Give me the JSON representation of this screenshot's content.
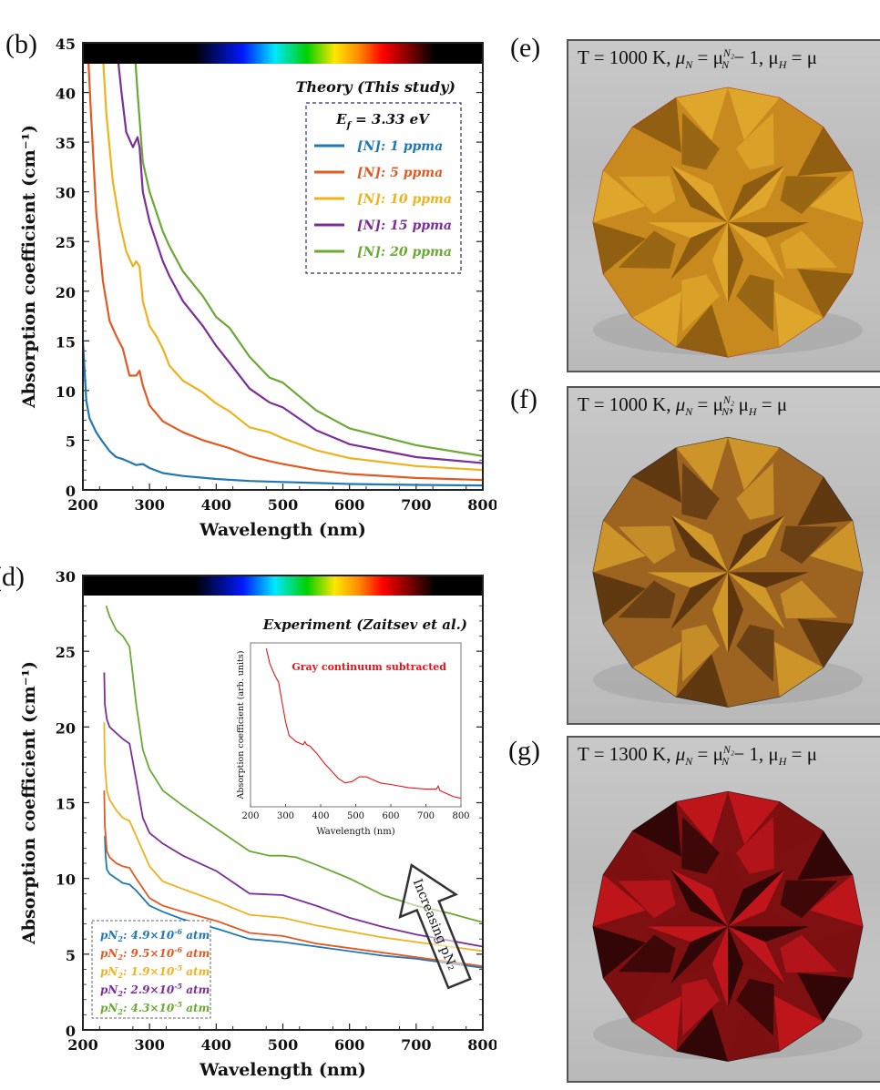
{
  "figure": {
    "panel_labels": [
      "(b)",
      "(d)",
      "(e)",
      "(f)",
      "(g)"
    ]
  },
  "chart_data": [
    {
      "id": "b",
      "type": "line",
      "title": "Theory (This study)",
      "legend_title": "E_f = 3.33 eV",
      "legend_title_main": "E",
      "legend_title_sub": "f",
      "legend_title_rest": " = 3.33 eV",
      "xlabel": "Wavelength (nm)",
      "ylabel": "Absorption coefficient (cm⁻¹)",
      "xlim": [
        200,
        800
      ],
      "ylim": [
        0,
        45
      ],
      "xticks": [
        200,
        300,
        400,
        500,
        600,
        700,
        800
      ],
      "yticks": [
        0,
        5,
        10,
        15,
        20,
        25,
        30,
        35,
        40,
        45
      ],
      "legend_position": "top-right",
      "colorbar": "visible spectrum strip across top (black–violet–blue–cyan–green–yellow–orange–red–black)",
      "series": [
        {
          "name": "[N]:  1 ppma",
          "color": "#1f77b4",
          "x": [
            200,
            205,
            210,
            220,
            230,
            240,
            250,
            260,
            270,
            280,
            290,
            300,
            320,
            350,
            400,
            450,
            500,
            550,
            600,
            700,
            800
          ],
          "y": [
            15,
            9,
            7.2,
            5.8,
            4.8,
            3.9,
            3.3,
            3.1,
            2.8,
            2.5,
            2.6,
            2.2,
            1.7,
            1.4,
            1.1,
            0.9,
            0.8,
            0.7,
            0.6,
            0.5,
            0.45
          ]
        },
        {
          "name": "[N]:  5 ppma",
          "color": "#e05a22",
          "x": [
            207,
            212,
            220,
            230,
            240,
            250,
            260,
            265,
            270,
            280,
            285,
            290,
            300,
            320,
            350,
            380,
            400,
            420,
            450,
            480,
            500,
            550,
            600,
            700,
            800
          ],
          "y": [
            45,
            38,
            28,
            21,
            17,
            15.5,
            14.2,
            12.8,
            11.5,
            11.5,
            12,
            10.5,
            8.5,
            6.9,
            5.8,
            5.0,
            4.6,
            4.2,
            3.4,
            2.9,
            2.6,
            2.0,
            1.6,
            1.2,
            1.0
          ]
        },
        {
          "name": "[N]: 10 ppma",
          "color": "#f0b21c",
          "x": [
            229,
            235,
            245,
            255,
            265,
            275,
            280,
            285,
            290,
            300,
            310,
            320,
            330,
            350,
            380,
            400,
            420,
            450,
            480,
            500,
            550,
            600,
            700,
            800
          ],
          "y": [
            45,
            38,
            31,
            27,
            24,
            22.5,
            23,
            22.5,
            19,
            16.5,
            15.5,
            14.2,
            12.5,
            11.0,
            9.8,
            8.7,
            7.9,
            6.3,
            5.8,
            5.2,
            4.0,
            3.2,
            2.4,
            2.0
          ]
        },
        {
          "name": "[N]: 15 ppma",
          "color": "#7b2d9c",
          "x": [
            250,
            258,
            265,
            275,
            282,
            285,
            290,
            300,
            310,
            320,
            330,
            350,
            380,
            400,
            420,
            450,
            480,
            500,
            550,
            600,
            700,
            800
          ],
          "y": [
            45,
            40,
            36,
            34.5,
            35.5,
            34.5,
            30,
            27,
            25,
            23,
            21.5,
            19,
            16.5,
            14.5,
            12.8,
            10.2,
            8.8,
            8.3,
            6.0,
            4.6,
            3.3,
            2.7
          ]
        },
        {
          "name": "[N]: 20 ppma",
          "color": "#6aa933",
          "x": [
            277,
            282,
            290,
            300,
            310,
            320,
            330,
            350,
            380,
            400,
            420,
            450,
            480,
            500,
            550,
            600,
            700,
            800
          ],
          "y": [
            45,
            40,
            33,
            30,
            28,
            26,
            24.5,
            22,
            19.5,
            17.4,
            16.3,
            13.4,
            11.3,
            10.8,
            8.0,
            6.2,
            4.5,
            3.4
          ]
        }
      ]
    },
    {
      "id": "d",
      "type": "line",
      "title": "Experiment (Zaitsev et al.)",
      "xlabel": "Wavelength (nm)",
      "ylabel": "Absorption coefficient (cm⁻¹)",
      "xlim": [
        200,
        800
      ],
      "ylim": [
        0,
        30
      ],
      "xticks": [
        200,
        300,
        400,
        500,
        600,
        700,
        800
      ],
      "yticks": [
        0,
        5,
        10,
        15,
        20,
        25,
        30
      ],
      "legend_position": "bottom-left",
      "annotation": "Increasing pN₂",
      "colorbar": "visible spectrum strip across top",
      "series": [
        {
          "name": "pN₂:  4.9×10⁻⁶ atm",
          "label_prefix": "pN",
          "label_sub": "2",
          "label_value": ":  4.9×10",
          "label_exp": "-6",
          "label_unit": " atm",
          "color": "#1f77b4",
          "x": [
            233,
            234,
            236,
            240,
            250,
            260,
            270,
            280,
            300,
            320,
            350,
            400,
            450,
            500,
            550,
            600,
            650,
            700,
            750,
            800
          ],
          "y": [
            12.8,
            11.5,
            10.6,
            10.3,
            10.0,
            9.7,
            9.6,
            9.2,
            8.2,
            7.8,
            7.3,
            6.7,
            6.0,
            5.8,
            5.5,
            5.2,
            4.9,
            4.7,
            4.4,
            4.1
          ]
        },
        {
          "name": "pN₂:  9.5×10⁻⁶ atm",
          "label_prefix": "pN",
          "label_sub": "2",
          "label_value": ":  9.5×10",
          "label_exp": "-6",
          "label_unit": " atm",
          "color": "#e05a22",
          "x": [
            232,
            233,
            236,
            240,
            250,
            260,
            270,
            280,
            300,
            320,
            350,
            400,
            450,
            500,
            550,
            600,
            650,
            700,
            750,
            800
          ],
          "y": [
            15.8,
            13.5,
            11.8,
            11.4,
            11.0,
            10.8,
            10.7,
            10.0,
            8.7,
            8.2,
            7.8,
            7.2,
            6.4,
            6.2,
            5.7,
            5.4,
            5.1,
            4.8,
            4.5,
            4.2
          ]
        },
        {
          "name": "pN₂:  1.9×10⁻⁵ atm",
          "label_prefix": "pN",
          "label_sub": "2",
          "label_value": ":  1.9×10",
          "label_exp": "-5",
          "label_unit": " atm",
          "color": "#f0b21c",
          "x": [
            232,
            233,
            236,
            240,
            250,
            260,
            270,
            280,
            300,
            320,
            350,
            400,
            450,
            500,
            550,
            600,
            650,
            700,
            750,
            800
          ],
          "y": [
            20.3,
            17.5,
            15.8,
            15.2,
            14.5,
            14.0,
            13.8,
            12.8,
            10.8,
            9.8,
            9.3,
            8.5,
            7.6,
            7.4,
            6.9,
            6.5,
            6.1,
            5.8,
            5.5,
            5.2
          ]
        },
        {
          "name": "pN₂:  2.9×10⁻⁵ atm",
          "label_prefix": "pN",
          "label_sub": "2",
          "label_value": ":  2.9×10",
          "label_exp": "-5",
          "label_unit": " atm",
          "color": "#7b2d9c",
          "x": [
            232,
            233,
            236,
            240,
            250,
            260,
            270,
            280,
            290,
            300,
            320,
            350,
            400,
            450,
            500,
            550,
            600,
            650,
            700,
            750,
            800
          ],
          "y": [
            23.6,
            21.5,
            20.5,
            20.0,
            19.6,
            19.2,
            18.9,
            16.5,
            14.0,
            13.0,
            12.3,
            11.5,
            10.5,
            9.0,
            8.9,
            8.2,
            7.4,
            6.8,
            6.3,
            5.9,
            5.5
          ]
        },
        {
          "name": "pN₂:  4.3×10⁻⁵ atm",
          "label_prefix": "pN",
          "label_sub": "2",
          "label_value": ":  4.3×10",
          "label_exp": "-5",
          "label_unit": " atm",
          "color": "#6aa933",
          "x": [
            235,
            240,
            250,
            260,
            270,
            280,
            290,
            300,
            320,
            350,
            400,
            450,
            480,
            500,
            520,
            550,
            600,
            650,
            700,
            750,
            800
          ],
          "y": [
            28,
            27.3,
            26.4,
            26.0,
            25.3,
            21.5,
            18.5,
            17.2,
            15.8,
            14.8,
            13.3,
            11.8,
            11.5,
            11.5,
            11.4,
            10.9,
            10.0,
            8.9,
            8.2,
            7.7,
            7.1
          ]
        }
      ]
    },
    {
      "id": "d-inset",
      "type": "line",
      "title": "",
      "annotation": "Gray continuum subtracted",
      "xlabel": "Wavelength (nm)",
      "ylabel": "Absorption coefficient (arb. units)",
      "xlim": [
        200,
        800
      ],
      "ylim": [
        0,
        1
      ],
      "xticks": [
        200,
        300,
        400,
        500,
        600,
        700,
        800
      ],
      "yticks": [],
      "series": [
        {
          "name": "Gray continuum subtracted",
          "color": "#e8141c",
          "x": [
            245,
            255,
            270,
            280,
            290,
            300,
            310,
            330,
            350,
            355,
            360,
            370,
            390,
            410,
            430,
            450,
            470,
            490,
            510,
            530,
            550,
            570,
            600,
            650,
            700,
            730,
            735,
            740,
            760,
            780,
            800
          ],
          "y": [
            1.0,
            0.9,
            0.82,
            0.78,
            0.65,
            0.52,
            0.43,
            0.39,
            0.37,
            0.39,
            0.37,
            0.36,
            0.31,
            0.25,
            0.2,
            0.15,
            0.12,
            0.13,
            0.16,
            0.16,
            0.14,
            0.12,
            0.11,
            0.09,
            0.08,
            0.08,
            0.1,
            0.07,
            0.05,
            0.03,
            0.02
          ]
        }
      ]
    }
  ],
  "gems": [
    {
      "id": "e",
      "temperature": "T = 1000 K,",
      "mu_n": "μ",
      "mu_n_sub": "N",
      "eq": " = μ",
      "mu_sup": "N₂",
      "mu_sub2": "N",
      "tail": " − 1,  μ",
      "mu_h_sub": "H",
      "tail2": " = μ",
      "color_light": "#e0a82c",
      "color_mid": "#c88a1e",
      "color_dark": "#8a5a10",
      "edge": "#b03010"
    },
    {
      "id": "f",
      "temperature": "T = 1000 K,",
      "mu_n": "μ",
      "mu_n_sub": "N",
      "eq": " = μ",
      "mu_sup": "N₂",
      "mu_sub2": "N",
      "tail": ",  μ",
      "mu_h_sub": "H",
      "tail2": " = μ",
      "color_light": "#d39a2a",
      "color_mid": "#9c6420",
      "color_dark": "#5a3410",
      "edge": "#222"
    },
    {
      "id": "g",
      "temperature": "T = 1300 K,",
      "mu_n": "μ",
      "mu_n_sub": "N",
      "eq": " = μ",
      "mu_sup": "N₂",
      "mu_sub2": "N",
      "tail": " − 1,  μ",
      "mu_h_sub": "H",
      "tail2": " = μ",
      "color_light": "#c4161c",
      "color_mid": "#7e1012",
      "color_dark": "#2a0606",
      "edge": "#111"
    }
  ]
}
